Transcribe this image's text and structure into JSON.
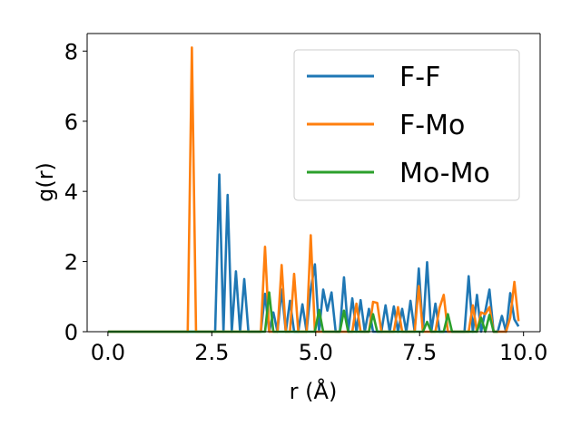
{
  "chart_data": {
    "type": "line",
    "title": "",
    "xlabel": "r (Å)",
    "ylabel": "g(r)",
    "xlim": [
      -0.5,
      10.4
    ],
    "ylim": [
      0,
      8.5
    ],
    "xticks": [
      0.0,
      2.5,
      5.0,
      7.5,
      10.0
    ],
    "xtick_labels": [
      "0.0",
      "2.5",
      "5.0",
      "7.5",
      "10.0"
    ],
    "yticks": [
      0,
      2,
      4,
      6,
      8
    ],
    "ytick_labels": [
      "0",
      "2",
      "4",
      "6",
      "8"
    ],
    "grid": false,
    "legend_position": "top-right",
    "series": [
      {
        "name": "F-F",
        "color": "#1f77b4",
        "x": [
          0.0,
          2.58,
          2.68,
          2.78,
          2.88,
          2.98,
          3.08,
          3.18,
          3.28,
          3.38,
          3.48,
          3.58,
          3.68,
          3.78,
          3.88,
          3.98,
          4.08,
          4.18,
          4.28,
          4.38,
          4.48,
          4.58,
          4.68,
          4.78,
          4.88,
          4.98,
          5.08,
          5.18,
          5.28,
          5.38,
          5.48,
          5.58,
          5.68,
          5.78,
          5.88,
          5.98,
          6.08,
          6.18,
          6.28,
          6.38,
          6.48,
          6.58,
          6.68,
          6.78,
          6.88,
          6.98,
          7.08,
          7.18,
          7.28,
          7.38,
          7.48,
          7.58,
          7.68,
          7.78,
          7.88,
          7.98,
          8.08,
          8.18,
          8.28,
          8.38,
          8.48,
          8.58,
          8.68,
          8.78,
          8.88,
          8.98,
          9.08,
          9.18,
          9.28,
          9.38,
          9.48,
          9.58,
          9.68,
          9.78,
          9.88
        ],
        "values": [
          0.0,
          0.0,
          4.48,
          0.0,
          3.9,
          0.0,
          1.72,
          0.0,
          1.5,
          0.0,
          0.0,
          0.0,
          0.0,
          1.08,
          0.0,
          0.55,
          0.0,
          1.2,
          0.0,
          0.88,
          0.0,
          0.0,
          0.78,
          0.0,
          1.2,
          1.92,
          0.0,
          1.2,
          0.6,
          1.12,
          0.0,
          0.0,
          1.55,
          0.0,
          0.95,
          0.0,
          0.9,
          0.0,
          0.65,
          0.0,
          0.0,
          0.0,
          0.75,
          0.0,
          0.72,
          0.0,
          0.65,
          0.0,
          0.88,
          0.0,
          1.8,
          0.0,
          1.98,
          0.0,
          0.8,
          0.0,
          0.0,
          0.0,
          0.0,
          0.0,
          0.0,
          0.0,
          1.58,
          0.0,
          1.05,
          0.0,
          0.58,
          1.2,
          0.0,
          0.0,
          0.45,
          0.0,
          1.1,
          0.35,
          0.15
        ]
      },
      {
        "name": "F-Mo",
        "color": "#ff7f0e",
        "x": [
          0.0,
          1.92,
          2.02,
          2.12,
          3.58,
          3.68,
          3.78,
          3.88,
          3.98,
          4.08,
          4.18,
          4.28,
          4.38,
          4.48,
          4.58,
          4.68,
          4.78,
          4.88,
          4.98,
          5.08,
          5.18,
          5.28,
          5.38,
          5.48,
          5.58,
          5.68,
          5.78,
          5.88,
          5.98,
          6.08,
          6.18,
          6.28,
          6.38,
          6.48,
          6.58,
          6.68,
          6.78,
          6.88,
          6.98,
          7.08,
          7.18,
          7.28,
          7.38,
          7.48,
          7.58,
          7.68,
          7.78,
          7.88,
          7.98,
          8.08,
          8.18,
          8.28,
          8.38,
          8.48,
          8.58,
          8.68,
          8.78,
          8.88,
          8.98,
          9.08,
          9.18,
          9.28,
          9.38,
          9.48,
          9.58,
          9.68,
          9.78,
          9.88
        ],
        "values": [
          0.0,
          0.0,
          8.1,
          0.0,
          0.0,
          0.0,
          2.42,
          0.0,
          0.0,
          0.0,
          1.9,
          0.0,
          0.0,
          1.65,
          0.0,
          0.0,
          0.0,
          2.75,
          0.0,
          0.0,
          0.0,
          0.0,
          0.0,
          0.0,
          0.0,
          0.0,
          0.0,
          0.0,
          0.8,
          0.0,
          0.0,
          0.0,
          0.85,
          0.82,
          0.0,
          0.0,
          0.0,
          0.0,
          0.7,
          0.0,
          0.0,
          0.0,
          0.0,
          1.3,
          0.0,
          0.0,
          0.0,
          0.0,
          0.68,
          1.05,
          0.0,
          0.0,
          0.0,
          0.0,
          0.0,
          0.0,
          0.75,
          0.0,
          0.55,
          0.5,
          0.7,
          0.0,
          0.0,
          0.0,
          0.0,
          0.4,
          1.42,
          0.3
        ]
      },
      {
        "name": "Mo-Mo",
        "color": "#2ca02c",
        "x": [
          0.0,
          3.78,
          3.88,
          3.98,
          4.98,
          5.08,
          5.18,
          5.58,
          5.68,
          5.78,
          5.88,
          6.28,
          6.38,
          6.48,
          7.58,
          7.68,
          7.78,
          8.08,
          8.18,
          8.28,
          8.88,
          8.98,
          9.08,
          9.18,
          9.28,
          9.38
        ],
        "values": [
          0.0,
          0.0,
          1.12,
          0.0,
          0.0,
          0.62,
          0.0,
          0.0,
          0.6,
          0.0,
          0.0,
          0.0,
          0.5,
          0.0,
          0.0,
          0.28,
          0.0,
          0.0,
          0.5,
          0.0,
          0.0,
          0.4,
          0.0,
          0.48,
          0.0,
          0.0
        ]
      }
    ]
  }
}
